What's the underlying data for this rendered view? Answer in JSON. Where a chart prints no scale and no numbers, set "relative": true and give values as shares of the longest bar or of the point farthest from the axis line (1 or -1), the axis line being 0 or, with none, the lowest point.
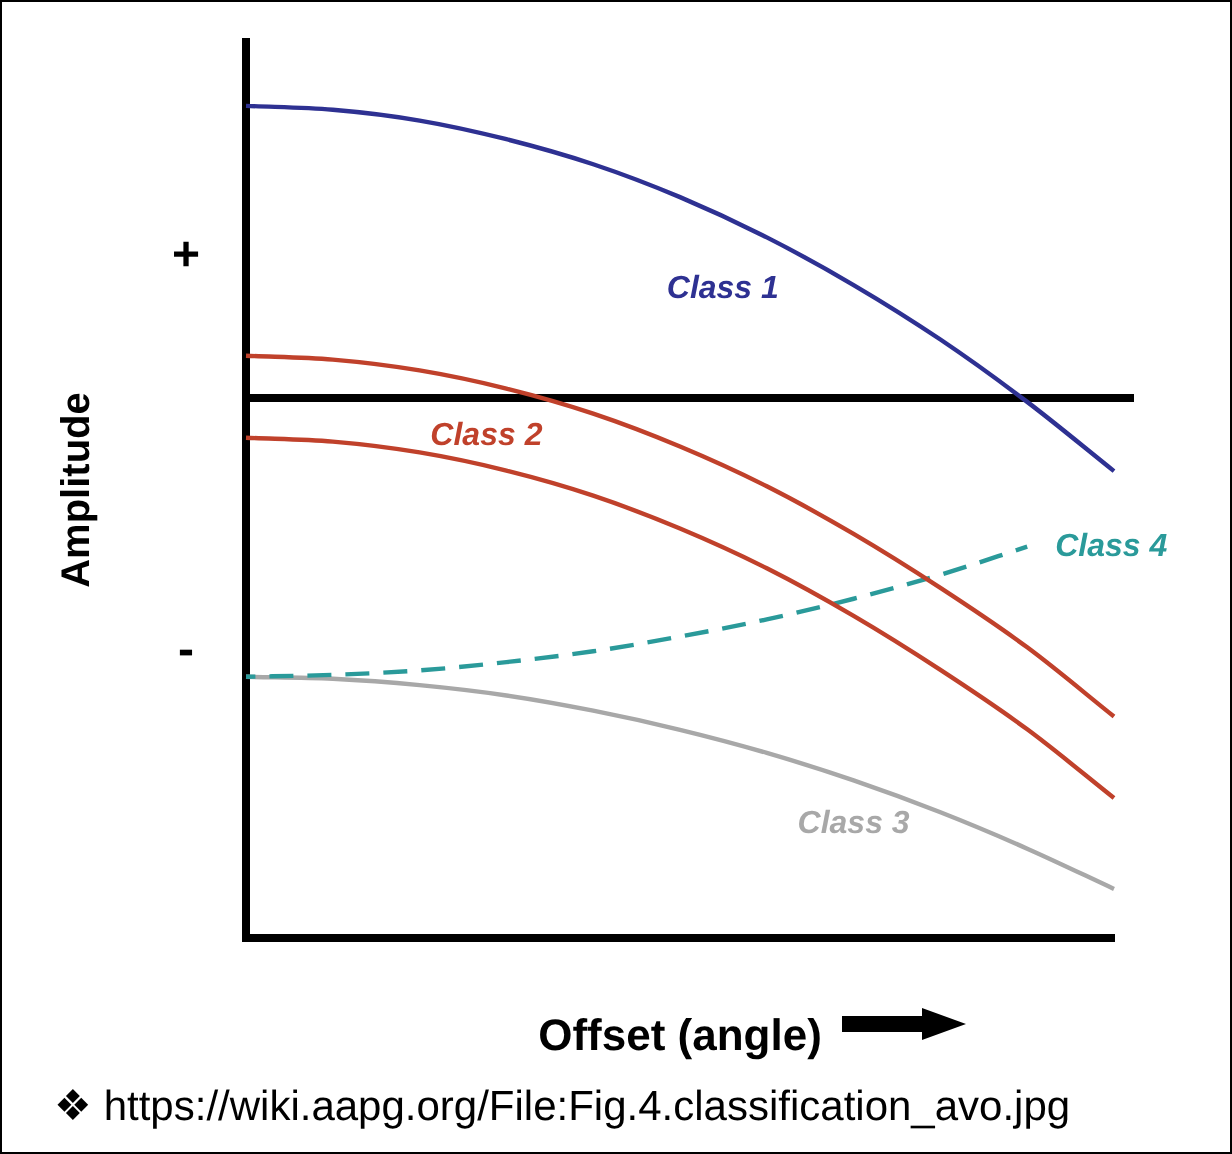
{
  "chart_data": {
    "type": "line",
    "relative": true,
    "xlabel": "Offset (angle)",
    "ylabel": "Amplitude",
    "categories": [
      null,
      null,
      null,
      null,
      null,
      null,
      null,
      null,
      null,
      null,
      null
    ],
    "series": [
      {
        "name": "Class 1",
        "color": "#2e3192",
        "values": [
          0.595,
          0.587,
          0.565,
          0.527,
          0.476,
          0.409,
          0.327,
          0.23,
          0.119,
          -0.008,
          -0.149
        ]
      },
      {
        "name": "Class 2",
        "color": "#c0412b",
        "values": [
          0.086,
          0.078,
          0.056,
          0.019,
          -0.032,
          -0.099,
          -0.18,
          -0.277,
          -0.387,
          -0.508,
          -0.649
        ]
      },
      {
        "color": "#c0412b",
        "values": [
          -0.081,
          -0.089,
          -0.111,
          -0.148,
          -0.199,
          -0.266,
          -0.347,
          -0.444,
          -0.554,
          -0.675,
          -0.815
        ]
      },
      {
        "name": "Class 4",
        "color": "#2a9a9a",
        "line_style": "dashed",
        "values": [
          -0.568,
          -0.564,
          -0.555,
          -0.538,
          -0.516,
          -0.486,
          -0.451,
          -0.409,
          -0.36,
          -0.303,
          null
        ]
      },
      {
        "name": "Class 3",
        "color": "#a8a8a8",
        "values": [
          -0.568,
          -0.572,
          -0.585,
          -0.606,
          -0.637,
          -0.676,
          -0.723,
          -0.779,
          -0.844,
          -0.918,
          -1
        ]
      }
    ],
    "ref_lines": [
      {
        "axis": "y",
        "value": 0,
        "color": "#000000"
      }
    ],
    "annotations": [
      "+",
      "-",
      "❖ https://wiki.aapg.org/File:Fig.4.classification_avo.jpg"
    ],
    "legend": false,
    "grid": false,
    "marker": "none",
    "line_style": "solid"
  }
}
